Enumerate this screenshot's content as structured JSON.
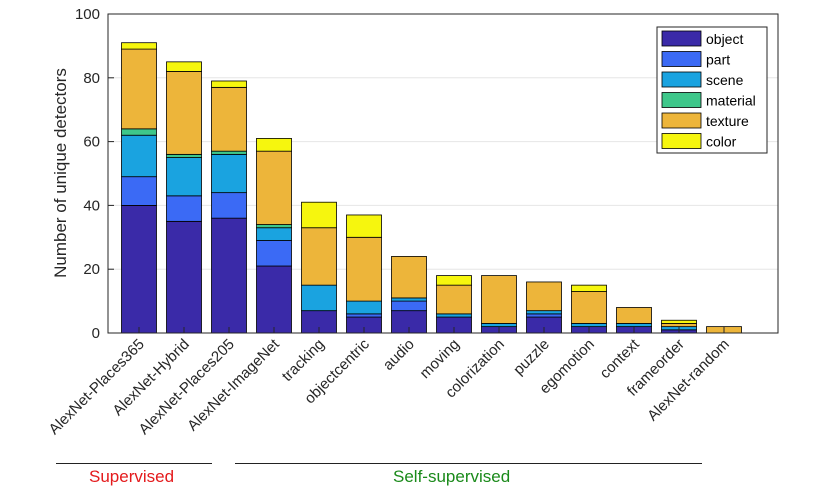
{
  "chart_data": {
    "type": "bar",
    "stacked": true,
    "categories": [
      "AlexNet-Places365",
      "AlexNet-Hybrid",
      "AlexNet-Places205",
      "AlexNet-ImageNet",
      "tracking",
      "objectcentric",
      "audio",
      "moving",
      "colorization",
      "puzzle",
      "egomotion",
      "context",
      "frameorder",
      "AlexNet-random"
    ],
    "series": [
      {
        "name": "object",
        "color": "#3a2aa8",
        "values": [
          40,
          35,
          36,
          21,
          7,
          5,
          7,
          5,
          2,
          5,
          2,
          2,
          1,
          0
        ]
      },
      {
        "name": "part",
        "color": "#3b6af5",
        "values": [
          9,
          8,
          8,
          8,
          0,
          1,
          3,
          0,
          0,
          1,
          0,
          0,
          0,
          0
        ]
      },
      {
        "name": "scene",
        "color": "#1aa3e0",
        "values": [
          13,
          12,
          12,
          4,
          8,
          4,
          1,
          1,
          1,
          1,
          1,
          1,
          1,
          0
        ]
      },
      {
        "name": "material",
        "color": "#3ec78a",
        "values": [
          2,
          1,
          1,
          1,
          0,
          0,
          0,
          0,
          0,
          0,
          0,
          0,
          0,
          0
        ]
      },
      {
        "name": "texture",
        "color": "#edb53a",
        "values": [
          25,
          26,
          20,
          23,
          18,
          20,
          13,
          9,
          15,
          9,
          10,
          5,
          1,
          2
        ]
      },
      {
        "name": "color",
        "color": "#f6f60e",
        "values": [
          2,
          3,
          2,
          4,
          8,
          7,
          0,
          3,
          0,
          0,
          2,
          0,
          1,
          0
        ]
      }
    ],
    "title": "",
    "xlabel": "",
    "ylabel": "Number of unique detectors",
    "ylim": [
      0,
      100
    ],
    "yticks": [
      0,
      20,
      40,
      60,
      80,
      100
    ],
    "grid": "horizontal",
    "legend_position": "top-right",
    "groups": [
      {
        "label": "Supervised",
        "color": "#e41a1c"
      },
      {
        "label": "Self-supervised",
        "color": "#1a8a1a"
      }
    ]
  }
}
